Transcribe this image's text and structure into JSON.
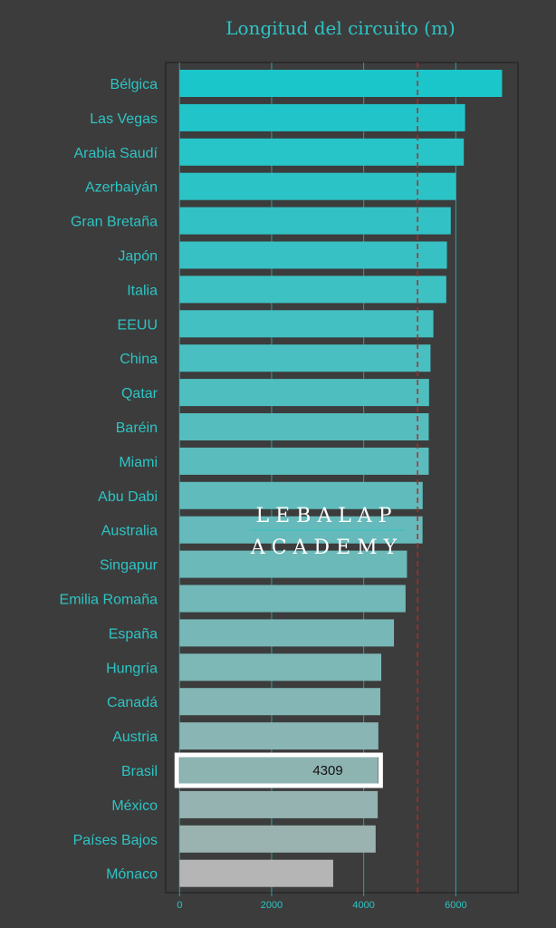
{
  "chart_data": {
    "type": "bar",
    "orientation": "horizontal",
    "title": "Longitud del circuito (m)",
    "xlabel": "",
    "ylabel": "",
    "xlim": [
      -300,
      7350
    ],
    "xticks": [
      0,
      2000,
      4000,
      6000
    ],
    "grid": true,
    "reference_line": 5170,
    "categories": [
      "Bélgica",
      "Las Vegas",
      "Arabia Saudí",
      "Azerbaiyán",
      "Gran Bretaña",
      "Japón",
      "Italia",
      "EEUU",
      "China",
      "Qatar",
      "Baréin",
      "Miami",
      "Abu Dabi",
      "Australia",
      "Singapur",
      "Emilia Romaña",
      "España",
      "Hungría",
      "Canadá",
      "Austria",
      "Brasil",
      "México",
      "Países Bajos",
      "Mónaco"
    ],
    "values": [
      7004,
      6201,
      6174,
      6003,
      5891,
      5807,
      5793,
      5513,
      5451,
      5419,
      5412,
      5412,
      5281,
      5278,
      4940,
      4909,
      4657,
      4381,
      4361,
      4318,
      4309,
      4304,
      4259,
      3337
    ],
    "highlight": {
      "category": "Brasil",
      "label": "4309"
    }
  },
  "watermark": {
    "line1": "LEBALAP",
    "line2": "ACADEMY"
  },
  "colors": {
    "background": "#3c3c3c",
    "accent": "#2ec4c4",
    "bar_top": "#1bc6ca",
    "bar_bottom": "#9ab2b0",
    "bar_last": "#b5b5b5",
    "reference": "#b02a2a",
    "grid": "#2f9ea0",
    "highlight_border": "#ffffff"
  }
}
